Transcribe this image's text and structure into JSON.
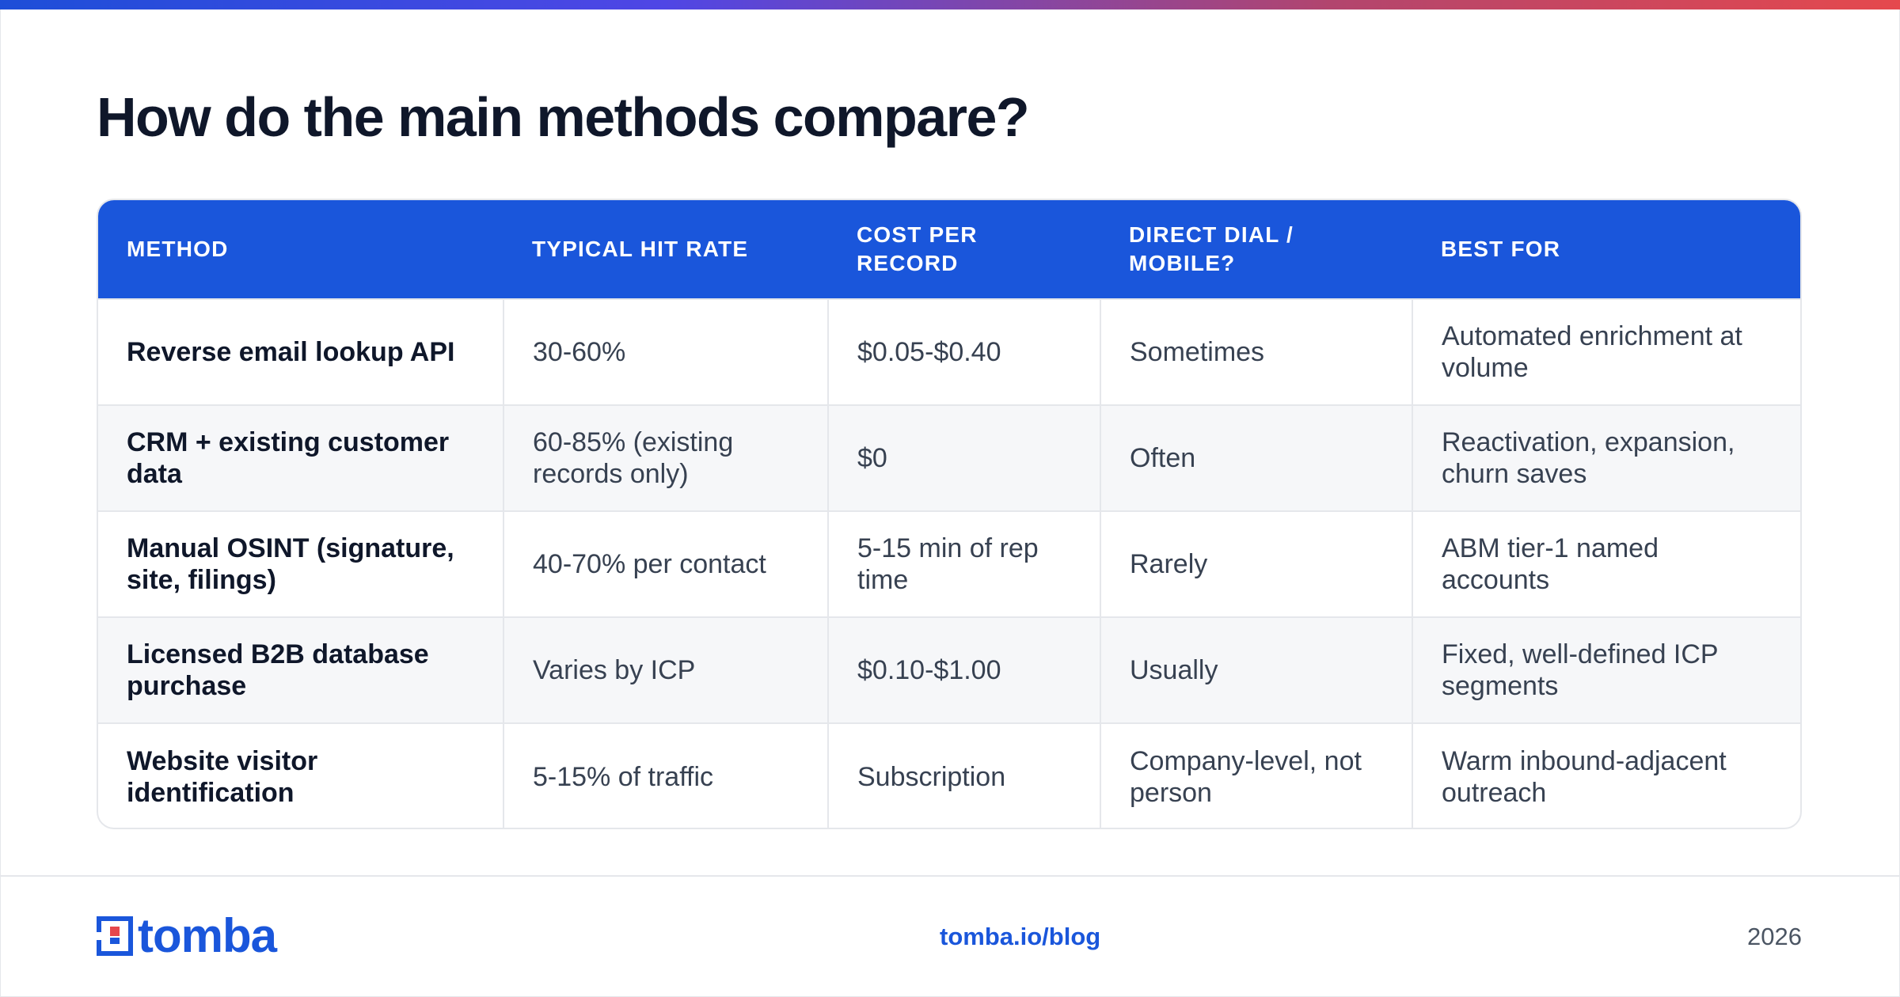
{
  "heading": "How do the main methods compare?",
  "table": {
    "headers": [
      "METHOD",
      "TYPICAL HIT RATE",
      "COST PER RECORD",
      "DIRECT DIAL / MOBILE?",
      "BEST FOR"
    ],
    "rows": [
      [
        "Reverse email lookup API",
        "30-60%",
        "$0.05-$0.40",
        "Sometimes",
        "Automated enrichment at volume"
      ],
      [
        "CRM + existing customer data",
        "60-85% (existing records only)",
        "$0",
        "Often",
        "Reactivation, expansion, churn saves"
      ],
      [
        "Manual OSINT (signature, site, filings)",
        "40-70% per contact",
        "5-15 min of rep time",
        "Rarely",
        "ABM tier-1 named accounts"
      ],
      [
        "Licensed B2B database purchase",
        "Varies by ICP",
        "$0.10-$1.00",
        "Usually",
        "Fixed, well-defined ICP segments"
      ],
      [
        "Website visitor identification",
        "5-15% of traffic",
        "Subscription",
        "Company-level, not person",
        "Warm inbound-adjacent outreach"
      ]
    ]
  },
  "footer": {
    "logo_text": "tomba",
    "link": "tomba.io/blog",
    "year": "2026"
  },
  "colors": {
    "accent": "#1a56db",
    "logo_red": "#e5484d",
    "gradient_start": "#1d4ed8",
    "gradient_end": "#e5484d"
  }
}
